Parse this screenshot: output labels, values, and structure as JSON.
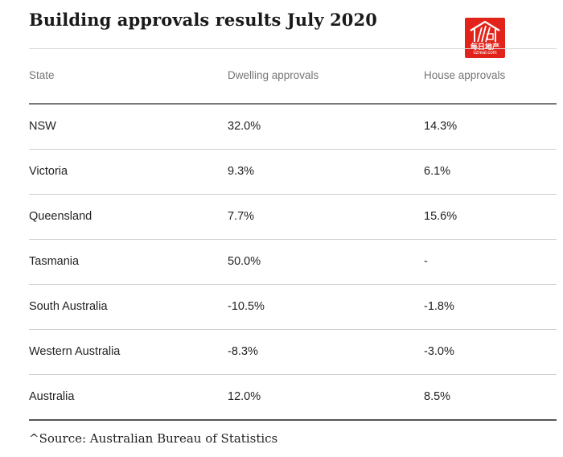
{
  "title": "Building approvals results July 2020",
  "logo": {
    "cn": "每日地产",
    "url": "ozreal.com",
    "color": "#e2231a"
  },
  "table": {
    "headers": [
      "State",
      "Dwelling approvals",
      "House approvals"
    ],
    "rows": [
      [
        "NSW",
        "32.0%",
        "14.3%"
      ],
      [
        "Victoria",
        "9.3%",
        "6.1%"
      ],
      [
        "Queensland",
        "7.7%",
        "15.6%"
      ],
      [
        "Tasmania",
        "50.0%",
        "-"
      ],
      [
        "South Australia",
        "-10.5%",
        "-1.8%"
      ],
      [
        "Western Australia",
        "-8.3%",
        "-3.0%"
      ],
      [
        "Australia",
        "12.0%",
        "8.5%"
      ]
    ]
  },
  "source": "^Source: Australian Bureau of Statistics"
}
